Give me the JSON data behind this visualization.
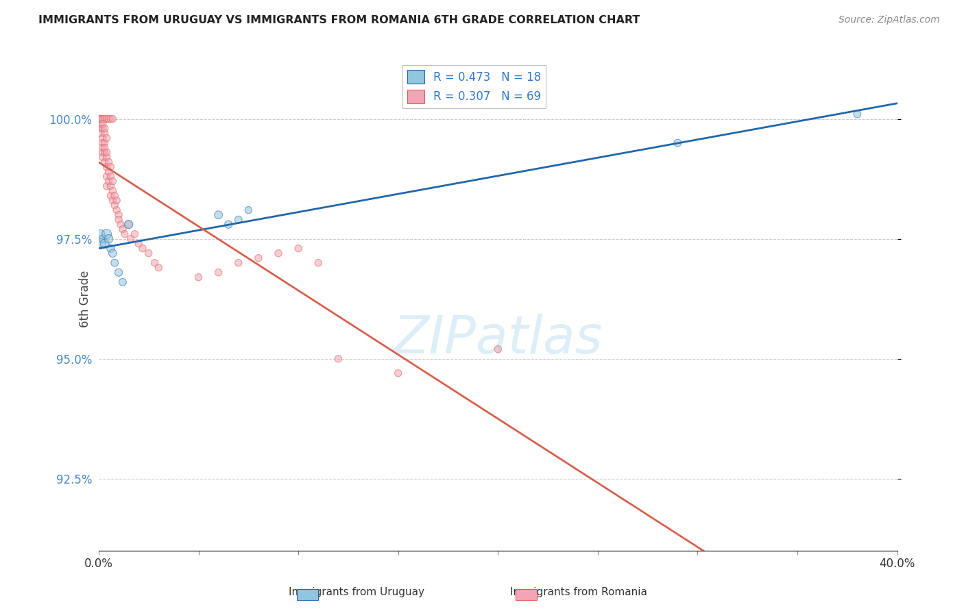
{
  "title": "IMMIGRANTS FROM URUGUAY VS IMMIGRANTS FROM ROMANIA 6TH GRADE CORRELATION CHART",
  "source": "Source: ZipAtlas.com",
  "ylabel": "6th Grade",
  "yticks": [
    92.5,
    95.0,
    97.5,
    100.0
  ],
  "ytick_labels": [
    "92.5%",
    "95.0%",
    "97.5%",
    "100.0%"
  ],
  "xlim": [
    0.0,
    0.4
  ],
  "ylim": [
    91.0,
    101.5
  ],
  "color_uruguay": "#92c5de",
  "color_romania": "#f4a4b8",
  "trendline_color_uruguay": "#2166ac",
  "trendline_color_romania": "#d6604d",
  "watermark_color": "#ddeef8",
  "grid_color": "#cccccc",
  "ylabel_color": "#444444",
  "ytick_color": "#4488cc",
  "title_color": "#222222",
  "source_color": "#888888",
  "uru_x": [
    0.001,
    0.001,
    0.002,
    0.003,
    0.004,
    0.005,
    0.006,
    0.007,
    0.008,
    0.01,
    0.012,
    0.015,
    0.06,
    0.065,
    0.07,
    0.075,
    0.29,
    0.38
  ],
  "uru_y": [
    97.4,
    97.6,
    97.5,
    97.4,
    97.6,
    97.5,
    97.3,
    97.2,
    97.0,
    96.8,
    96.6,
    97.8,
    98.0,
    97.8,
    97.9,
    98.1,
    99.5,
    100.1
  ],
  "uru_sizes": [
    120,
    80,
    70,
    90,
    100,
    80,
    65,
    70,
    60,
    65,
    60,
    80,
    70,
    65,
    60,
    55,
    60,
    60
  ],
  "rom_x": [
    0.001,
    0.001,
    0.001,
    0.001,
    0.001,
    0.002,
    0.002,
    0.002,
    0.002,
    0.002,
    0.002,
    0.003,
    0.003,
    0.003,
    0.003,
    0.003,
    0.004,
    0.004,
    0.004,
    0.004,
    0.004,
    0.004,
    0.005,
    0.005,
    0.005,
    0.006,
    0.006,
    0.006,
    0.006,
    0.007,
    0.007,
    0.007,
    0.008,
    0.008,
    0.009,
    0.009,
    0.01,
    0.01,
    0.011,
    0.012,
    0.013,
    0.015,
    0.016,
    0.018,
    0.02,
    0.022,
    0.025,
    0.028,
    0.03,
    0.05,
    0.06,
    0.07,
    0.08,
    0.09,
    0.1,
    0.11,
    0.12,
    0.15,
    0.2,
    0.001,
    0.001,
    0.002,
    0.003,
    0.004,
    0.005,
    0.006,
    0.002,
    0.003,
    0.007
  ],
  "rom_y": [
    99.8,
    99.9,
    100.0,
    100.0,
    99.7,
    99.6,
    99.5,
    99.4,
    99.3,
    99.2,
    99.8,
    99.7,
    99.5,
    99.3,
    99.1,
    99.4,
    99.2,
    99.0,
    98.8,
    99.3,
    99.6,
    98.6,
    98.9,
    99.1,
    98.7,
    98.8,
    98.6,
    99.0,
    98.4,
    98.5,
    98.3,
    98.7,
    98.4,
    98.2,
    98.1,
    98.3,
    98.0,
    97.9,
    97.8,
    97.7,
    97.6,
    97.8,
    97.5,
    97.6,
    97.4,
    97.3,
    97.2,
    97.0,
    96.9,
    96.7,
    96.8,
    97.0,
    97.1,
    97.2,
    97.3,
    97.0,
    95.0,
    94.7,
    95.2,
    100.0,
    100.0,
    100.0,
    100.0,
    100.0,
    100.0,
    100.0,
    99.9,
    99.8,
    100.0
  ],
  "rom_sizes": [
    55,
    55,
    55,
    55,
    55,
    55,
    55,
    55,
    55,
    55,
    55,
    55,
    55,
    55,
    55,
    55,
    55,
    55,
    55,
    55,
    55,
    55,
    55,
    55,
    55,
    55,
    55,
    55,
    55,
    55,
    55,
    55,
    55,
    55,
    55,
    55,
    55,
    55,
    55,
    55,
    55,
    55,
    55,
    55,
    55,
    55,
    55,
    55,
    55,
    55,
    55,
    55,
    55,
    55,
    55,
    55,
    55,
    55,
    55,
    55,
    55,
    55,
    55,
    55,
    55,
    55,
    55,
    55,
    55
  ]
}
